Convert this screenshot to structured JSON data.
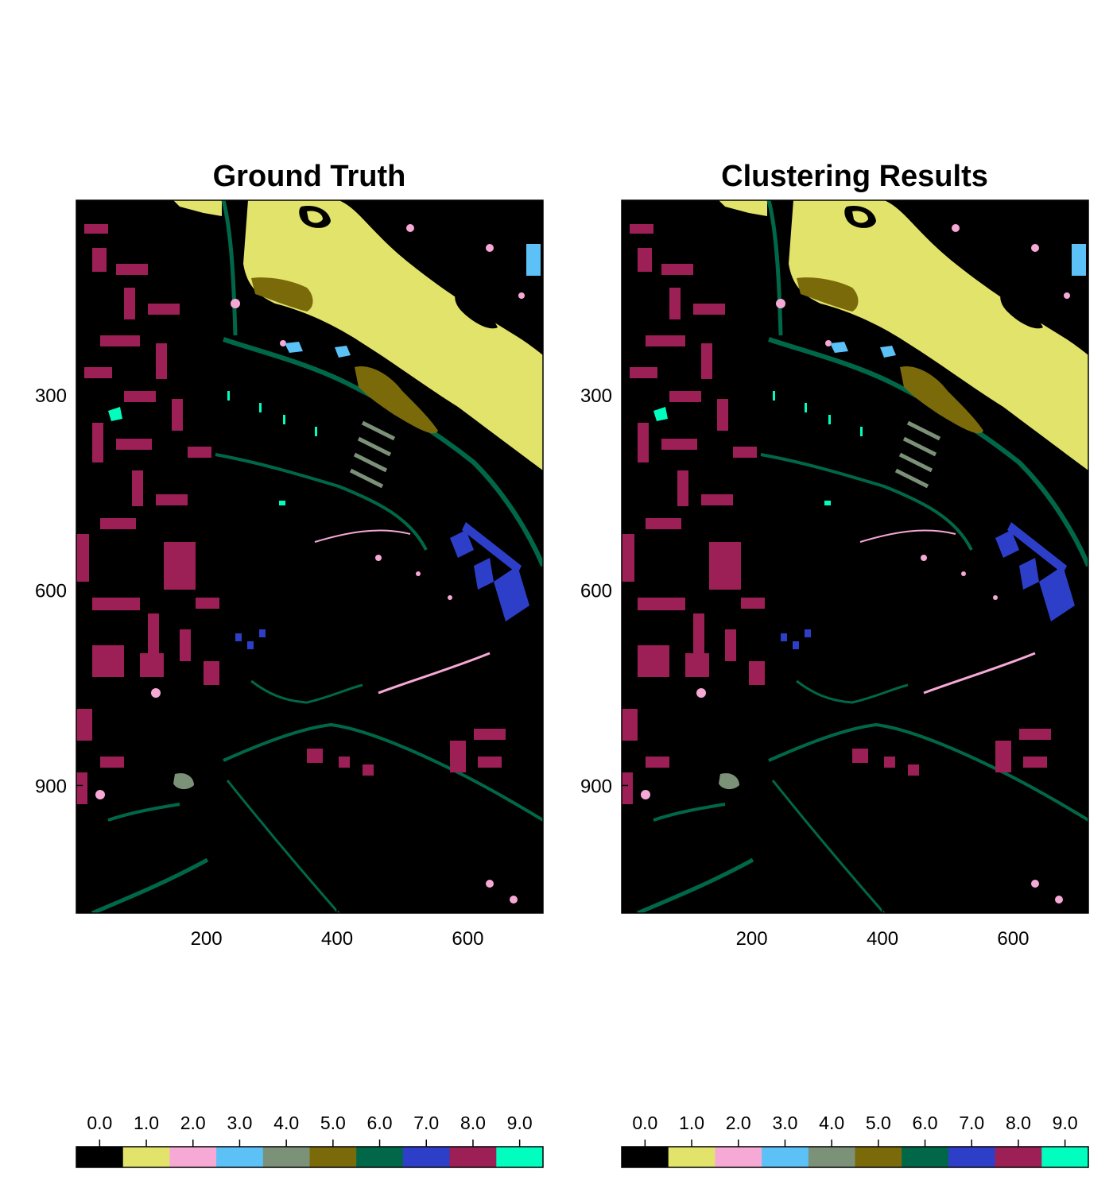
{
  "colors": {
    "0": "#000000",
    "1": "#e1e36a",
    "2": "#f7a9d6",
    "3": "#5bc1f7",
    "4": "#7c9278",
    "5": "#7a6a0a",
    "6": "#006848",
    "7": "#2d3fc9",
    "8": "#9c1f56",
    "9": "#00ffbf"
  },
  "chart_data": [
    {
      "type": "heatmap",
      "title": "Ground Truth",
      "x_ticks": [
        200,
        400,
        600
      ],
      "y_ticks": [
        300,
        600,
        900
      ],
      "xlim": [
        1,
        715
      ],
      "ylim": [
        1096,
        1
      ],
      "y_inverted": true,
      "colorbar": {
        "ticks": [
          "0.0",
          "1.0",
          "2.0",
          "3.0",
          "4.0",
          "5.0",
          "6.0",
          "7.0",
          "8.0",
          "9.0"
        ],
        "classes": [
          0,
          1,
          2,
          3,
          4,
          5,
          6,
          7,
          8,
          9
        ],
        "placement": "bottom"
      },
      "background_class": 0
    },
    {
      "type": "heatmap",
      "title": "Clustering Results",
      "x_ticks": [
        200,
        400,
        600
      ],
      "y_ticks": [
        300,
        600,
        900
      ],
      "xlim": [
        1,
        715
      ],
      "ylim": [
        1096,
        1
      ],
      "y_inverted": true,
      "colorbar": {
        "ticks": [
          "0.0",
          "1.0",
          "2.0",
          "3.0",
          "4.0",
          "5.0",
          "6.0",
          "7.0",
          "8.0",
          "9.0"
        ],
        "classes": [
          0,
          1,
          2,
          3,
          4,
          5,
          6,
          7,
          8,
          9
        ],
        "placement": "bottom"
      },
      "background_class": 0
    }
  ]
}
